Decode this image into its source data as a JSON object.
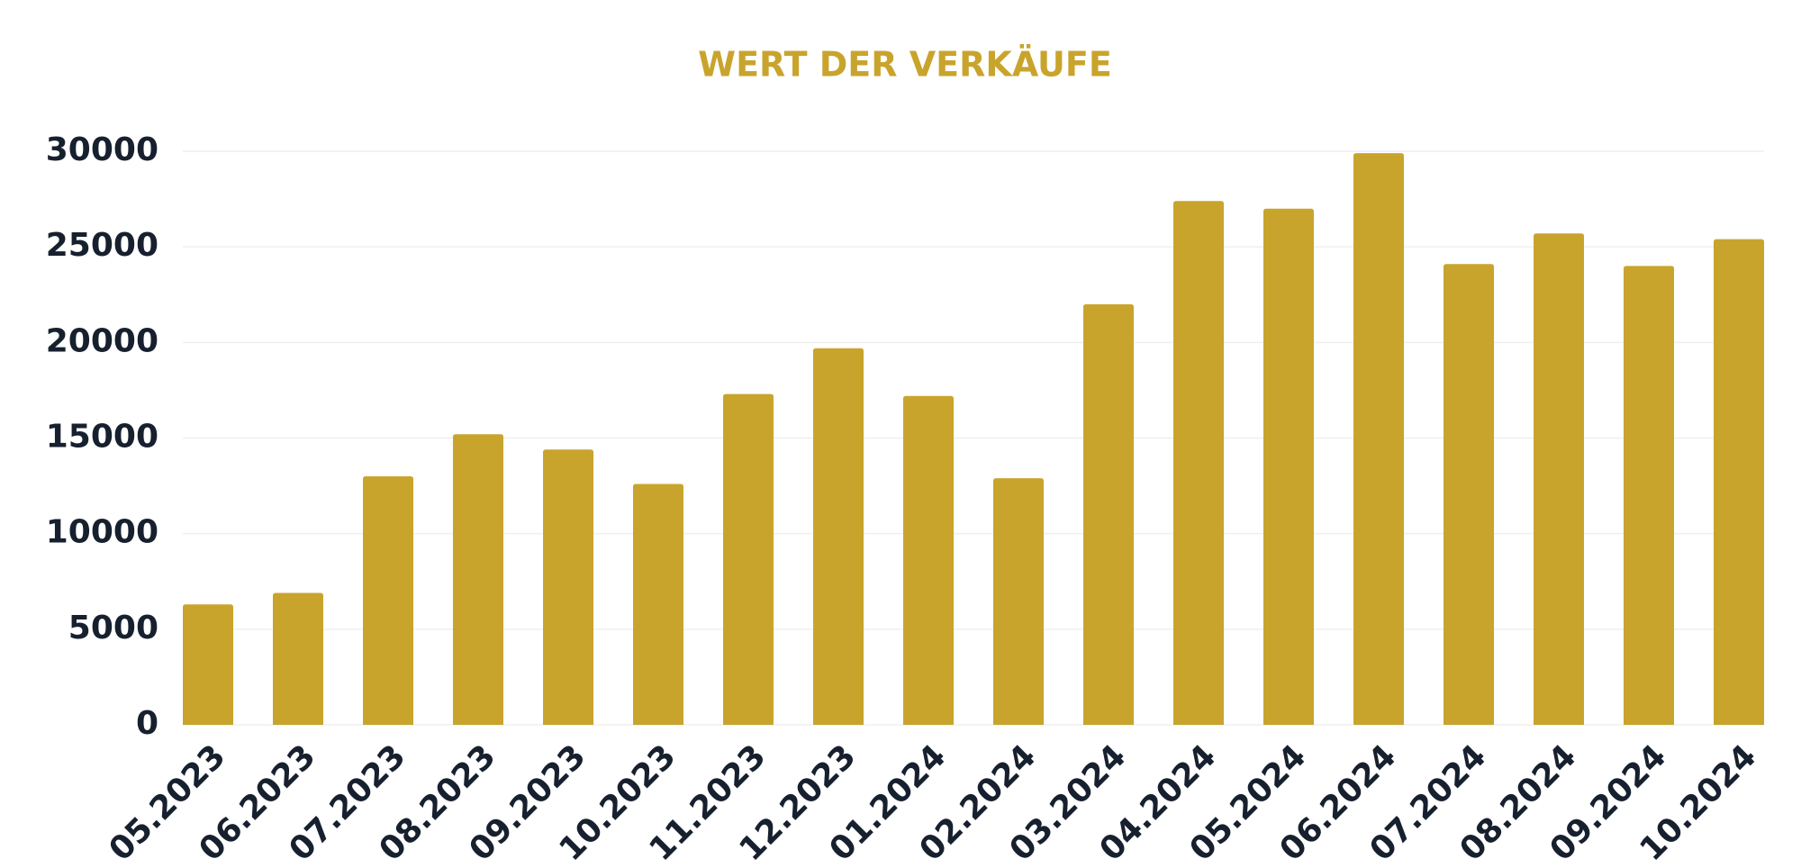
{
  "chart_data": {
    "type": "bar",
    "title": "WERT DER VERKÄUFE",
    "categories": [
      "05.2023",
      "06.2023",
      "07.2023",
      "08.2023",
      "09.2023",
      "10.2023",
      "11.2023",
      "12.2023",
      "01.2024",
      "02.2024",
      "03.2024",
      "04.2024",
      "05.2024",
      "06.2024",
      "07.2024",
      "08.2024",
      "09.2024",
      "10.2024"
    ],
    "values": [
      6300,
      6900,
      13000,
      15200,
      14400,
      12600,
      17300,
      19700,
      17200,
      12900,
      22000,
      27400,
      27000,
      29900,
      24100,
      25700,
      24000,
      25400
    ],
    "color": "#c9a42d",
    "ylim": [
      0,
      30000
    ],
    "yticks": [
      0,
      5000,
      10000,
      15000,
      20000,
      25000,
      30000
    ],
    "grid": true
  }
}
